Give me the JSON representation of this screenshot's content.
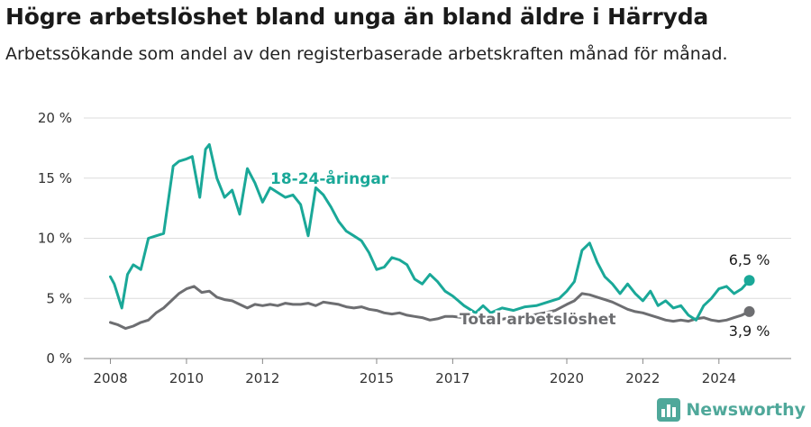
{
  "title": "Högre arbetslöshet bland unga än bland äldre i Härryda",
  "subtitle": "Arbetssökande som andel av den registerbaserade arbetskraften månad för månad.",
  "brand": {
    "name": "Newsworthy",
    "color": "#4fa89a",
    "icon": "bar-chart-logo-icon"
  },
  "chart_data": {
    "type": "line",
    "title": "Högre arbetslöshet bland unga än bland äldre i Härryda",
    "subtitle": "Arbetssökande som andel av den registerbaserade arbetskraften månad för månad.",
    "xlabel": "",
    "ylabel": "",
    "xlim": [
      2007.3,
      2025.9
    ],
    "ylim": [
      0,
      20
    ],
    "grid": true,
    "legend": "inline labels",
    "x_ticks": [
      2008,
      2010,
      2012,
      2015,
      2017,
      2020,
      2022,
      2024
    ],
    "x_tick_labels": [
      "2008",
      "2010",
      "2012",
      "2015",
      "2017",
      "2020",
      "2022",
      "2024"
    ],
    "y_ticks": [
      0,
      5,
      10,
      15,
      20
    ],
    "y_tick_labels": [
      "0 %",
      "5 %",
      "10 %",
      "15 %",
      "20 %"
    ],
    "series": [
      {
        "name": "18-24-åringar",
        "color": "#1aa898",
        "end_label": "6,5 %",
        "x": [
          2008.0,
          2008.1,
          2008.3,
          2008.45,
          2008.6,
          2008.8,
          2009.0,
          2009.2,
          2009.4,
          2009.65,
          2009.8,
          2010.0,
          2010.15,
          2010.35,
          2010.5,
          2010.6,
          2010.8,
          2011.0,
          2011.2,
          2011.4,
          2011.6,
          2011.8,
          2012.0,
          2012.2,
          2012.4,
          2012.6,
          2012.8,
          2013.0,
          2013.2,
          2013.4,
          2013.6,
          2013.8,
          2014.0,
          2014.2,
          2014.4,
          2014.6,
          2014.8,
          2015.0,
          2015.2,
          2015.4,
          2015.6,
          2015.8,
          2016.0,
          2016.2,
          2016.4,
          2016.6,
          2016.8,
          2017.0,
          2017.3,
          2017.6,
          2017.8,
          2018.0,
          2018.3,
          2018.6,
          2018.9,
          2019.2,
          2019.5,
          2019.8,
          2020.0,
          2020.2,
          2020.4,
          2020.6,
          2020.8,
          2021.0,
          2021.2,
          2021.4,
          2021.6,
          2021.8,
          2022.0,
          2022.2,
          2022.4,
          2022.6,
          2022.8,
          2023.0,
          2023.2,
          2023.4,
          2023.6,
          2023.8,
          2024.0,
          2024.2,
          2024.4,
          2024.6,
          2024.8
        ],
        "y": [
          6.8,
          6.2,
          4.2,
          7.0,
          7.8,
          7.4,
          10.0,
          10.2,
          10.4,
          16.0,
          16.4,
          16.6,
          16.8,
          13.4,
          17.4,
          17.8,
          15.0,
          13.4,
          14.0,
          12.0,
          15.8,
          14.6,
          13.0,
          14.2,
          13.8,
          13.4,
          13.6,
          12.8,
          10.2,
          14.2,
          13.6,
          12.6,
          11.4,
          10.6,
          10.2,
          9.8,
          8.8,
          7.4,
          7.6,
          8.4,
          8.2,
          7.8,
          6.6,
          6.2,
          7.0,
          6.4,
          5.6,
          5.2,
          4.4,
          3.8,
          4.4,
          3.8,
          4.2,
          4.0,
          4.3,
          4.4,
          4.7,
          5.0,
          5.6,
          6.4,
          9.0,
          9.6,
          8.0,
          6.8,
          6.2,
          5.4,
          6.2,
          5.4,
          4.8,
          5.6,
          4.4,
          4.8,
          4.2,
          4.4,
          3.6,
          3.2,
          4.4,
          5.0,
          5.8,
          6.0,
          5.4,
          5.8,
          6.5
        ]
      },
      {
        "name": "Total arbetslöshet",
        "color": "#6d6e71",
        "end_label": "3,9 %",
        "x": [
          2008.0,
          2008.2,
          2008.4,
          2008.6,
          2008.8,
          2009.0,
          2009.2,
          2009.4,
          2009.6,
          2009.8,
          2010.0,
          2010.2,
          2010.4,
          2010.6,
          2010.8,
          2011.0,
          2011.2,
          2011.4,
          2011.6,
          2011.8,
          2012.0,
          2012.2,
          2012.4,
          2012.6,
          2012.8,
          2013.0,
          2013.2,
          2013.4,
          2013.6,
          2013.8,
          2014.0,
          2014.2,
          2014.4,
          2014.6,
          2014.8,
          2015.0,
          2015.2,
          2015.4,
          2015.6,
          2015.8,
          2016.0,
          2016.2,
          2016.4,
          2016.6,
          2016.8,
          2017.0,
          2017.3,
          2017.6,
          2017.9,
          2018.2,
          2018.5,
          2018.8,
          2019.1,
          2019.4,
          2019.7,
          2020.0,
          2020.2,
          2020.4,
          2020.6,
          2020.8,
          2021.0,
          2021.2,
          2021.4,
          2021.6,
          2021.8,
          2022.0,
          2022.2,
          2022.4,
          2022.6,
          2022.8,
          2023.0,
          2023.2,
          2023.4,
          2023.6,
          2023.8,
          2024.0,
          2024.2,
          2024.4,
          2024.6,
          2024.8
        ],
        "y": [
          3.0,
          2.8,
          2.5,
          2.7,
          3.0,
          3.2,
          3.8,
          4.2,
          4.8,
          5.4,
          5.8,
          6.0,
          5.5,
          5.6,
          5.1,
          4.9,
          4.8,
          4.5,
          4.2,
          4.5,
          4.4,
          4.5,
          4.4,
          4.6,
          4.5,
          4.5,
          4.6,
          4.4,
          4.7,
          4.6,
          4.5,
          4.3,
          4.2,
          4.3,
          4.1,
          4.0,
          3.8,
          3.7,
          3.8,
          3.6,
          3.5,
          3.4,
          3.2,
          3.3,
          3.5,
          3.5,
          3.4,
          3.3,
          3.3,
          3.2,
          3.4,
          3.5,
          3.6,
          3.8,
          4.0,
          4.5,
          4.8,
          5.4,
          5.3,
          5.1,
          4.9,
          4.7,
          4.4,
          4.1,
          3.9,
          3.8,
          3.6,
          3.4,
          3.2,
          3.1,
          3.2,
          3.1,
          3.3,
          3.4,
          3.2,
          3.1,
          3.2,
          3.4,
          3.6,
          3.9
        ]
      }
    ]
  }
}
